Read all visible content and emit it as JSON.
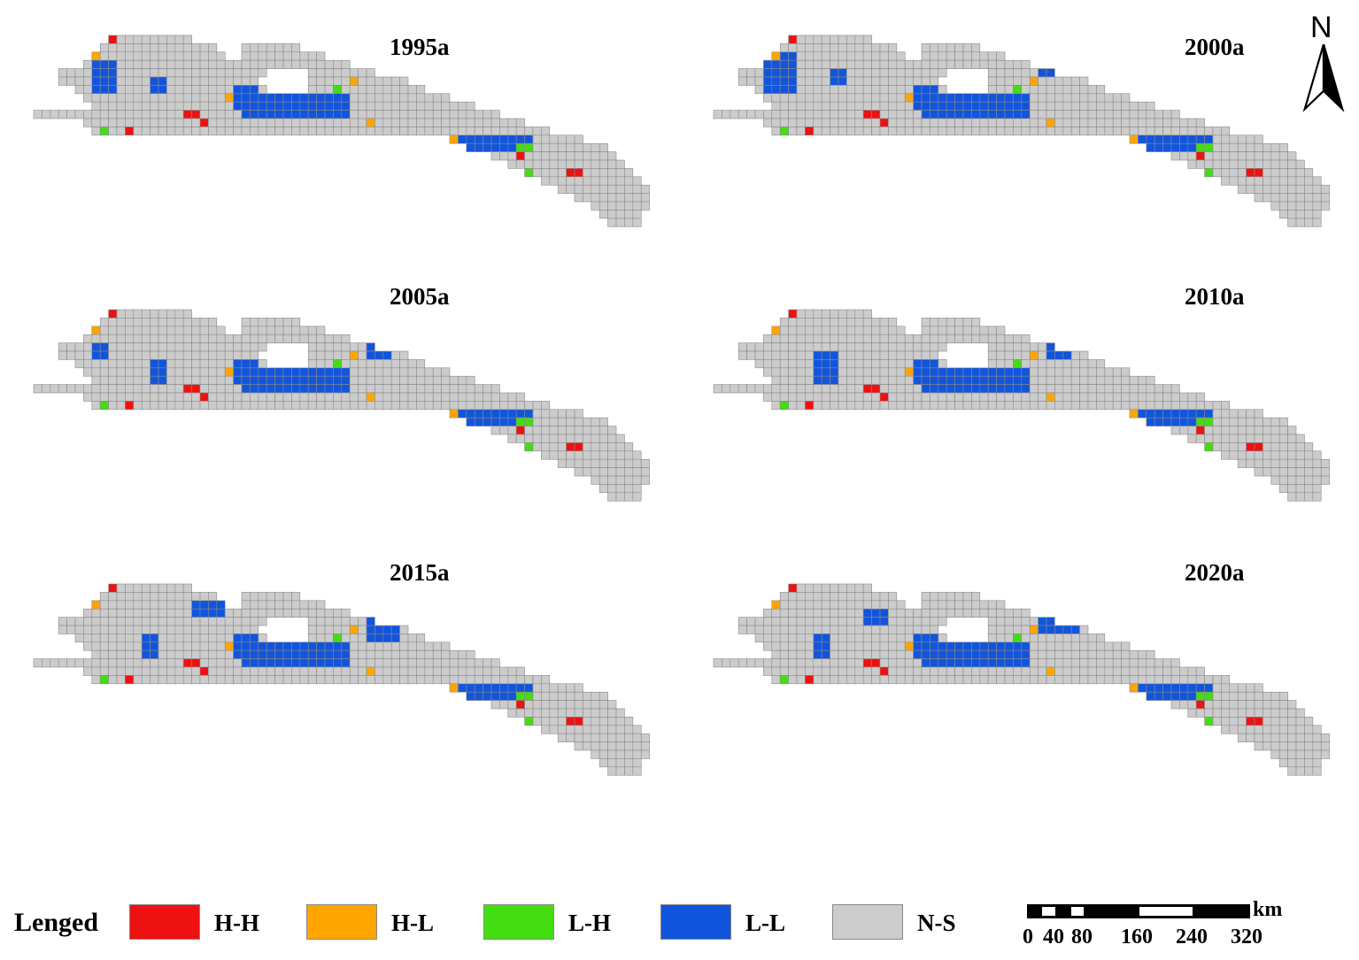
{
  "panels": [
    {
      "title": "1995a"
    },
    {
      "title": "2000a"
    },
    {
      "title": "2005a"
    },
    {
      "title": "2010a"
    },
    {
      "title": "2015a"
    },
    {
      "title": "2020a"
    }
  ],
  "north_arrow": {
    "label": "N"
  },
  "legend": {
    "title": "Lenged",
    "items": [
      {
        "label": "H-H",
        "color": "#ee1111"
      },
      {
        "label": "H-L",
        "color": "#ffa500"
      },
      {
        "label": "L-H",
        "color": "#44dd11"
      },
      {
        "label": "L-L",
        "color": "#1155dd"
      },
      {
        "label": "N-S",
        "color": "#cccccc"
      }
    ]
  },
  "scale_bar": {
    "unit": "km",
    "ticks": [
      "0",
      "40",
      "80",
      "160",
      "240",
      "320"
    ]
  },
  "colors": {
    "grid_line": "#8a8a8a",
    "background": "#ffffff"
  }
}
